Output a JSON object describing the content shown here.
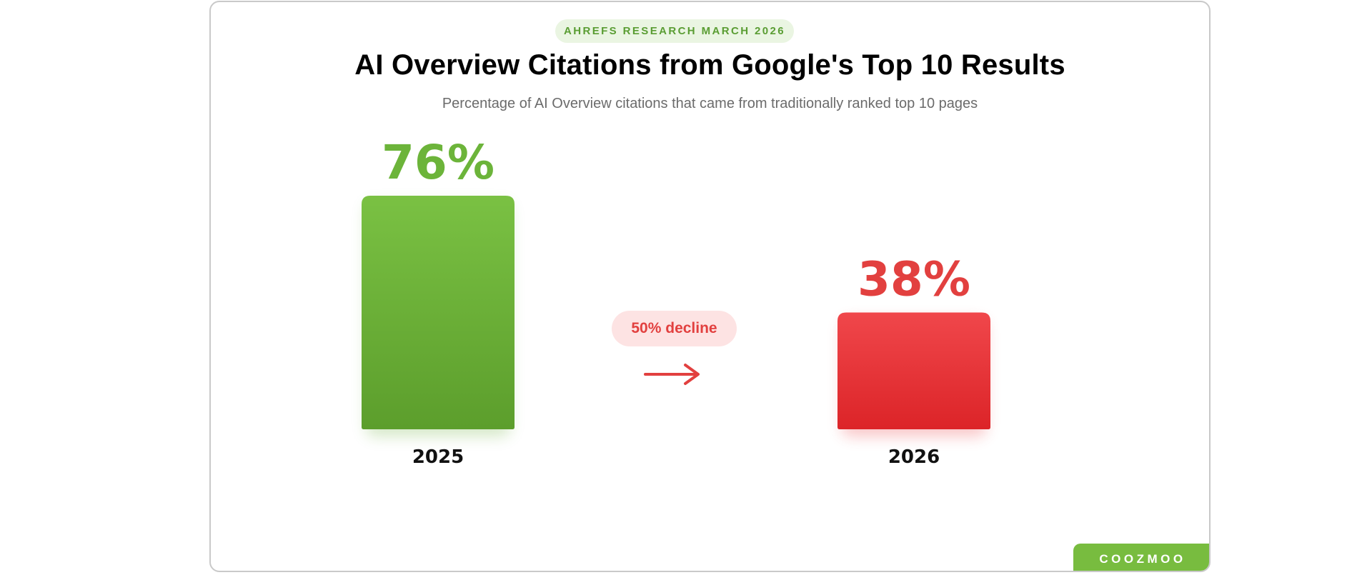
{
  "header": {
    "badge": "AHREFS RESEARCH MARCH 2026",
    "title": "AI Overview Citations from Google's Top 10 Results",
    "subtitle": "Percentage of AI Overview citations that came from traditionally ranked top 10 pages"
  },
  "chart_data": {
    "type": "bar",
    "title": "AI Overview Citations from Google's Top 10 Results",
    "subtitle": "Percentage of AI Overview citations that came from traditionally ranked top 10 pages",
    "categories": [
      "2025",
      "2026"
    ],
    "values": [
      76,
      38
    ],
    "value_labels": [
      "76%",
      "38%"
    ],
    "ylim": [
      0,
      76
    ],
    "grid": false,
    "colors": [
      "#6aaf3a",
      "#e8343a"
    ],
    "annotation": "50% decline"
  },
  "colors": {
    "green": "#78bc3f",
    "red": "#e2403f",
    "badge_bg": "#eaf5e2",
    "pill_bg": "#fde3e3"
  },
  "icons": {
    "arrow": "arrow-right-icon"
  },
  "footer": {
    "brand": "COOZMOO"
  }
}
